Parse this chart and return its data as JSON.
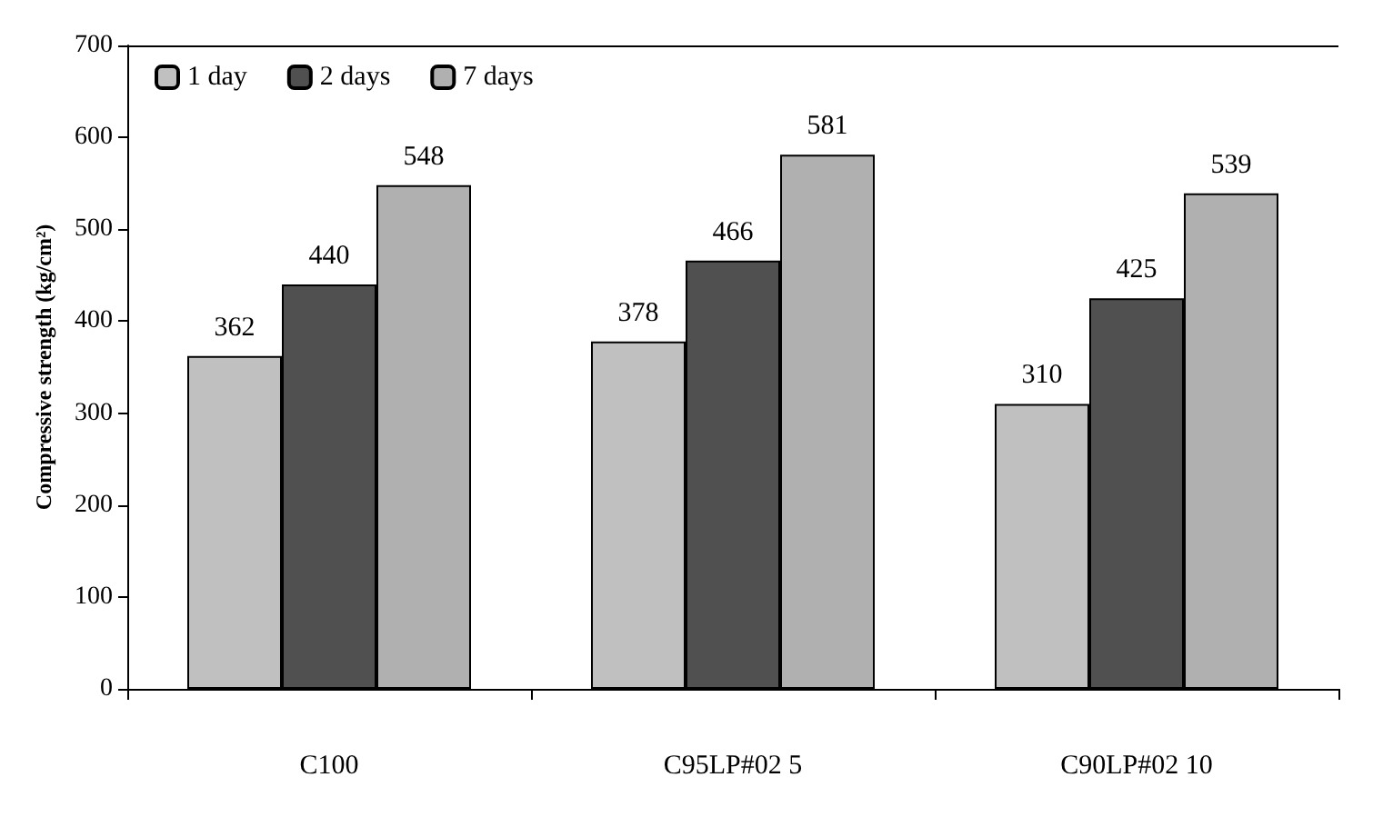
{
  "chart_data": {
    "type": "bar",
    "ylabel": "Compressive strength (kg/cm²)",
    "categories": [
      "C100",
      "C95LP#02 5",
      "C90LP#02 10"
    ],
    "series": [
      {
        "name": "1 day",
        "color": "#c0c0c0",
        "values": [
          362,
          378,
          310
        ]
      },
      {
        "name": "2 days",
        "color": "#505050",
        "values": [
          440,
          466,
          425
        ]
      },
      {
        "name": "7 days",
        "color": "#b0b0b0",
        "values": [
          548,
          581,
          539
        ]
      }
    ],
    "ylim": [
      0,
      700
    ],
    "yticks": [
      0,
      100,
      200,
      300,
      400,
      500,
      600,
      700
    ],
    "grid": false,
    "legend": "top left",
    "data_labels": true
  }
}
